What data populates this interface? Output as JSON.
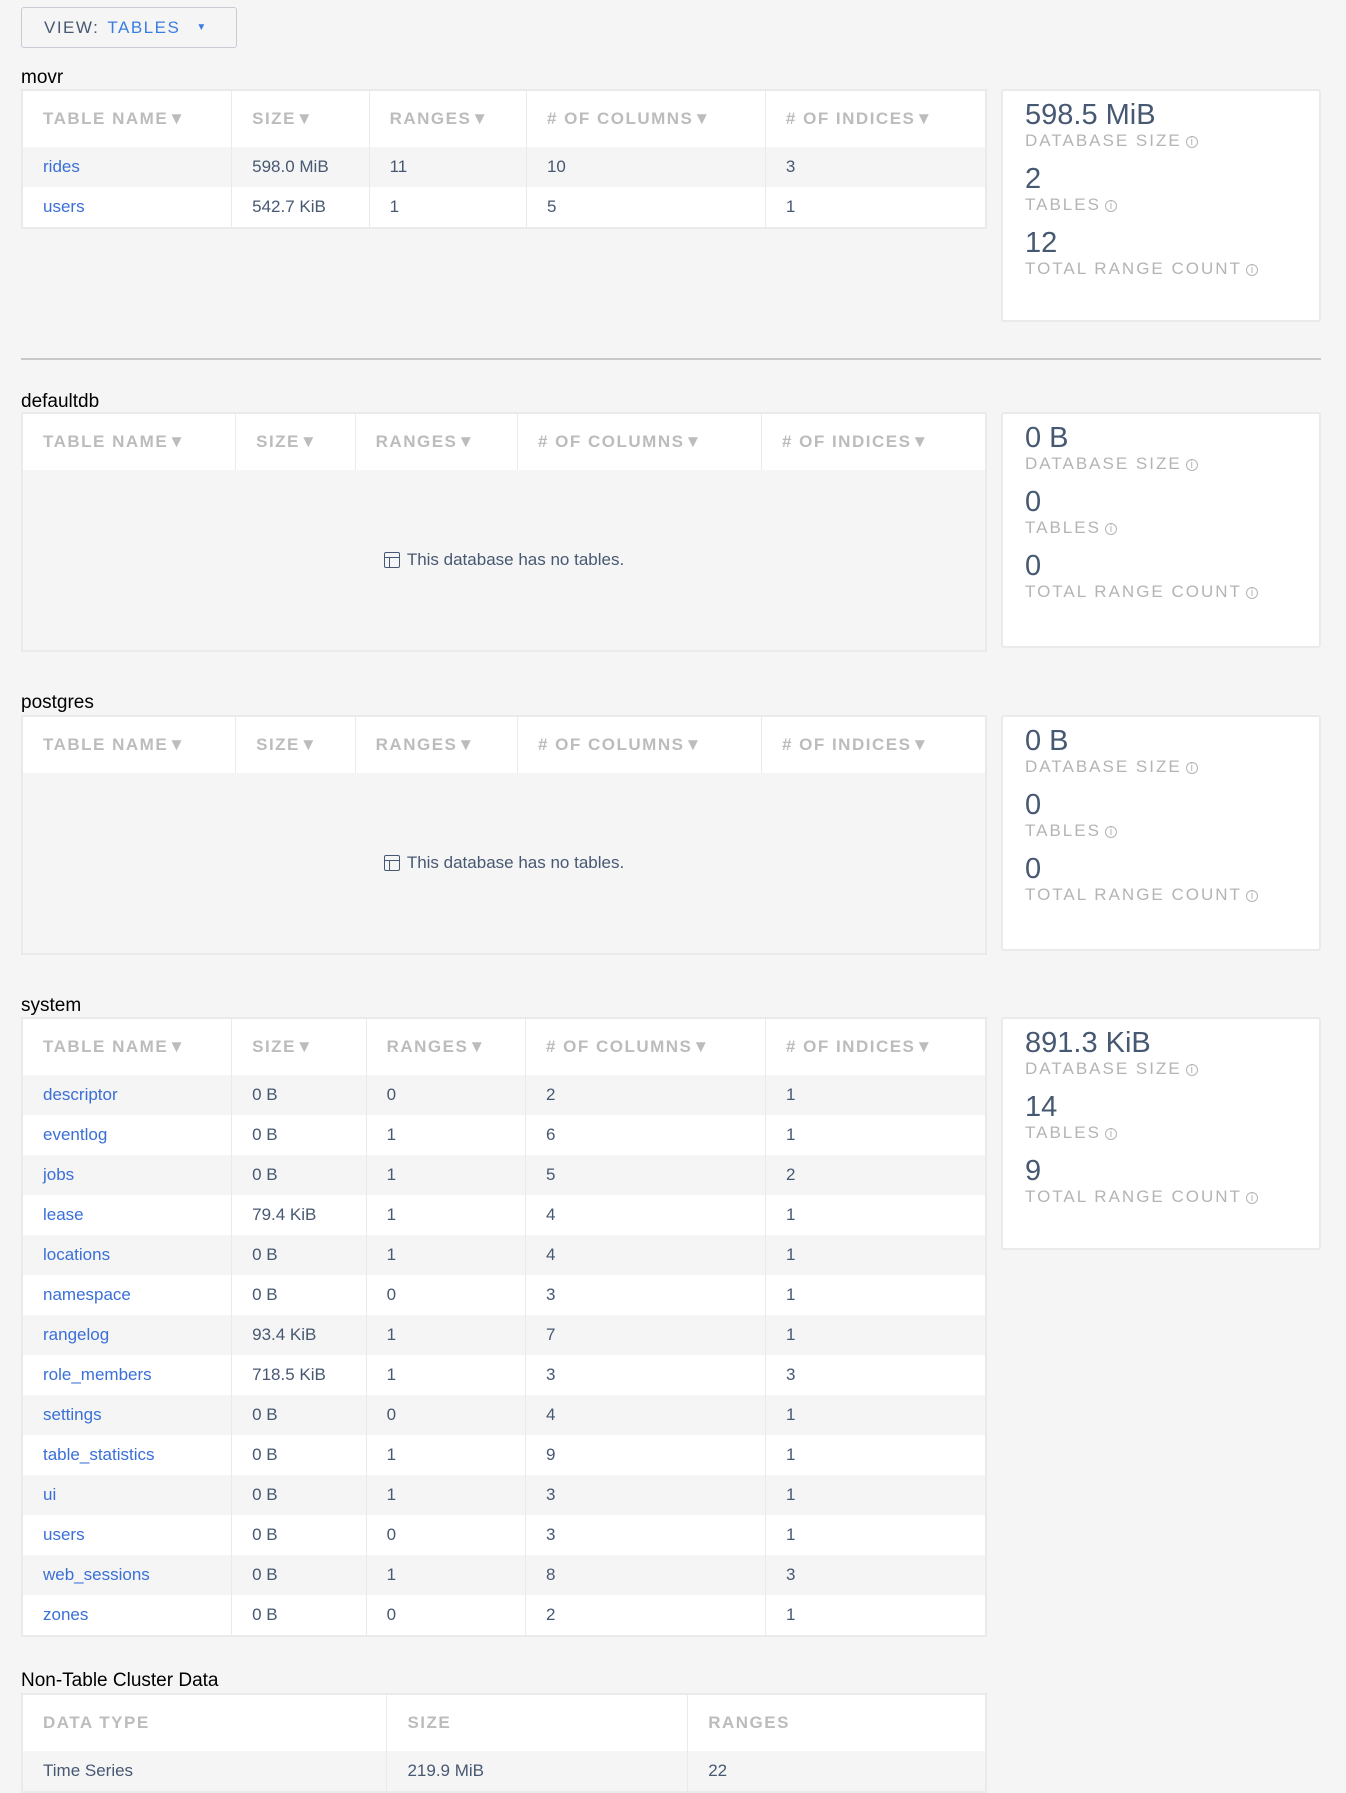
{
  "view_selector": {
    "label": "VIEW:",
    "value": "TABLES"
  },
  "table_headers": [
    "TABLE NAME▼",
    "SIZE▼",
    "RANGES▼",
    "# OF COLUMNS▼",
    "# OF INDICES▼"
  ],
  "empty_message": "This database has no tables.",
  "summary_labels": {
    "size": "DATABASE SIZE",
    "tables": "TABLES",
    "ranges": "TOTAL RANGE COUNT"
  },
  "databases": [
    {
      "name": "movr",
      "summary": {
        "size": "598.5 MiB",
        "tables": "2",
        "ranges": "12"
      },
      "rows": [
        [
          "rides",
          "598.0 MiB",
          "11",
          "10",
          "3"
        ],
        [
          "users",
          "542.7 KiB",
          "1",
          "5",
          "1"
        ]
      ]
    },
    {
      "name": "defaultdb",
      "summary": {
        "size": "0 B",
        "tables": "0",
        "ranges": "0"
      },
      "rows": []
    },
    {
      "name": "postgres",
      "summary": {
        "size": "0 B",
        "tables": "0",
        "ranges": "0"
      },
      "rows": []
    },
    {
      "name": "system",
      "summary": {
        "size": "891.3 KiB",
        "tables": "14",
        "ranges": "9"
      },
      "rows": [
        [
          "descriptor",
          "0 B",
          "0",
          "2",
          "1"
        ],
        [
          "eventlog",
          "0 B",
          "1",
          "6",
          "1"
        ],
        [
          "jobs",
          "0 B",
          "1",
          "5",
          "2"
        ],
        [
          "lease",
          "79.4 KiB",
          "1",
          "4",
          "1"
        ],
        [
          "locations",
          "0 B",
          "1",
          "4",
          "1"
        ],
        [
          "namespace",
          "0 B",
          "0",
          "3",
          "1"
        ],
        [
          "rangelog",
          "93.4 KiB",
          "1",
          "7",
          "1"
        ],
        [
          "role_members",
          "718.5 KiB",
          "1",
          "3",
          "3"
        ],
        [
          "settings",
          "0 B",
          "0",
          "4",
          "1"
        ],
        [
          "table_statistics",
          "0 B",
          "1",
          "9",
          "1"
        ],
        [
          "ui",
          "0 B",
          "1",
          "3",
          "1"
        ],
        [
          "users",
          "0 B",
          "0",
          "3",
          "1"
        ],
        [
          "web_sessions",
          "0 B",
          "1",
          "8",
          "3"
        ],
        [
          "zones",
          "0 B",
          "0",
          "2",
          "1"
        ]
      ]
    }
  ],
  "non_table": {
    "title": "Non-Table Cluster Data",
    "headers": [
      "DATA TYPE",
      "SIZE",
      "RANGES"
    ],
    "rows": [
      [
        "Time Series",
        "219.9 MiB",
        "22"
      ]
    ]
  }
}
